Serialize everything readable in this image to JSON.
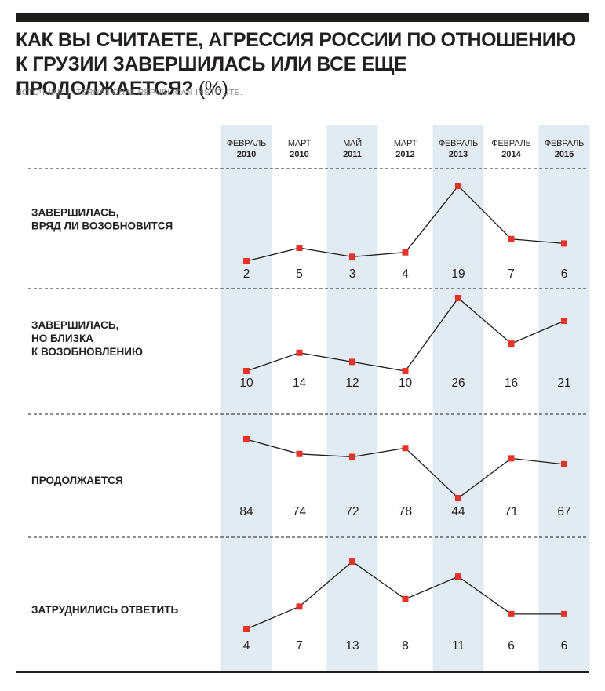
{
  "title": "Как вы считаете, агрессия России по отношению к Грузии завершилась или все еще продолжается?",
  "unit": "(%)",
  "source": "Источник: International Republican Institute.",
  "colors": {
    "highlight_band": "#e2ebf2",
    "marker": "#e63329",
    "line": "#1d1d1b"
  },
  "chart_data": {
    "type": "line",
    "title": "Как вы считаете, агрессия России по отношению к Грузии завершилась или все еще продолжается?",
    "unit": "(%)",
    "categories": [
      {
        "month": "Февраль",
        "year": "2010",
        "highlight": true
      },
      {
        "month": "Март",
        "year": "2010",
        "highlight": false
      },
      {
        "month": "Май",
        "year": "2011",
        "highlight": true
      },
      {
        "month": "Март",
        "year": "2012",
        "highlight": false
      },
      {
        "month": "Февраль",
        "year": "2013",
        "highlight": true
      },
      {
        "month": "Февраль",
        "year": "2014",
        "highlight": false
      },
      {
        "month": "Февраль",
        "year": "2015",
        "highlight": true
      }
    ],
    "series": [
      {
        "name": "Завершилась, вряд ли возобновится",
        "label_lines": [
          "Завершилась,",
          "вряд ли возобновится"
        ],
        "values": [
          2,
          5,
          3,
          4,
          19,
          7,
          6
        ]
      },
      {
        "name": "Завершилась, но близка к возобновлению",
        "label_lines": [
          "Завершилась,",
          "но близка",
          "к возобновлению"
        ],
        "values": [
          10,
          14,
          12,
          10,
          26,
          16,
          21
        ]
      },
      {
        "name": "Продолжается",
        "label_lines": [
          "Продолжается"
        ],
        "values": [
          84,
          74,
          72,
          78,
          44,
          71,
          67
        ]
      },
      {
        "name": "Затруднились ответить",
        "label_lines": [
          "Затруднились ответить"
        ],
        "values": [
          4,
          7,
          13,
          8,
          11,
          6,
          6
        ]
      }
    ],
    "grid": false,
    "legend": "none"
  }
}
